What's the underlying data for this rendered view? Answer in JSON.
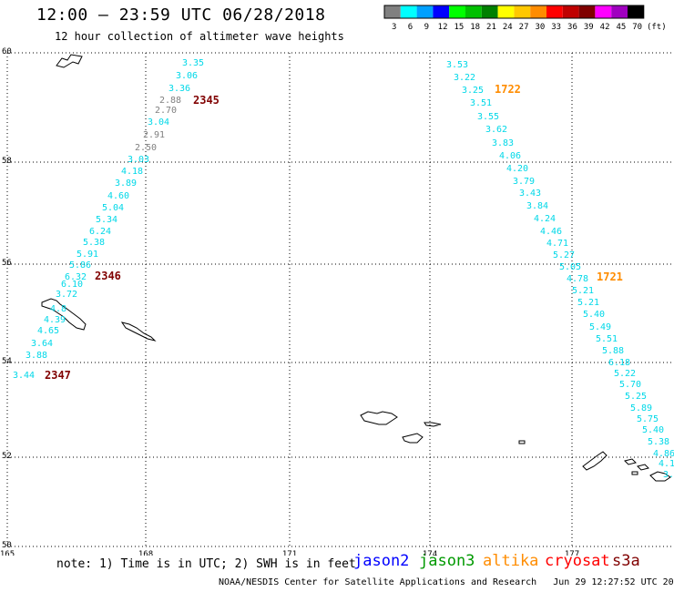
{
  "header": {
    "title": "12:00 – 23:59 UTC 06/28/2018",
    "subtitle": "12 hour collection of altimeter wave heights"
  },
  "legend": {
    "unit": "(ft)",
    "colors": [
      "#808080",
      "#00ffff",
      "#00a0ff",
      "#0000ff",
      "#00ff00",
      "#00c000",
      "#008000",
      "#ffff00",
      "#ffc800",
      "#ff8c00",
      "#ff0000",
      "#c00000",
      "#800000",
      "#ff00ff",
      "#a000c0",
      "#000000"
    ],
    "labels": [
      "3",
      "6",
      "9",
      "12",
      "15",
      "18",
      "21",
      "24",
      "27",
      "30",
      "33",
      "36",
      "39",
      "42",
      "45",
      "70"
    ]
  },
  "map": {
    "lat_labels": [
      "60",
      "58",
      "56",
      "54",
      "52",
      "50"
    ],
    "lon_labels": [
      "165",
      "168",
      "171",
      "174",
      "177"
    ],
    "track_color": "#00d8e8",
    "low_color": "#808080",
    "tracks": [
      {
        "time_labels": [
          {
            "text": "2345",
            "color": "#800000"
          },
          {
            "text": "2346",
            "color": "#800000"
          },
          {
            "text": "2347",
            "color": "#800000"
          }
        ],
        "values": [
          "3.35",
          "3.06",
          "3.36",
          "2.88",
          "2.70",
          "3.04",
          "2.91",
          "2.50",
          "3.03",
          "4.18",
          "3.89",
          "4.60",
          "5.04",
          "5.34",
          "6.24",
          "5.38",
          "5.91",
          "5.86",
          "6.32",
          "6.10",
          "3.72",
          "4.8",
          "4.39",
          "4.65",
          "3.64",
          "3.88",
          "3.44"
        ]
      },
      {
        "time_labels": [
          {
            "text": "1722",
            "color": "#ff8c00"
          },
          {
            "text": "1721",
            "color": "#ff8c00"
          }
        ],
        "values": [
          "3.53",
          "3.22",
          "3.25",
          "3.51",
          "3.55",
          "3.62",
          "3.83",
          "4.06",
          "4.20",
          "3.79",
          "3.43",
          "3.84",
          "4.24",
          "4.46",
          "4.71",
          "5.27",
          "5.05",
          "4.78",
          "5.21",
          "5.21",
          "5.40",
          "5.49",
          "5.51",
          "5.88",
          "6.18",
          "5.22",
          "5.70",
          "5.25",
          "5.89",
          "5.75",
          "5.40",
          "5.38",
          "4.86",
          "4.1",
          "3."
        ]
      }
    ]
  },
  "footer": {
    "note": "note: 1) Time is in UTC; 2) SWH is in feet",
    "satellites": {
      "jason2": "jason2",
      "jason3": "jason3",
      "altika": "altika",
      "cryosat": "cryosat",
      "s3a": "s3a"
    },
    "credit": "NOAA/NESDIS Center for Satellite Applications and Research   Jun 29 12:27:52 UTC 2018"
  }
}
